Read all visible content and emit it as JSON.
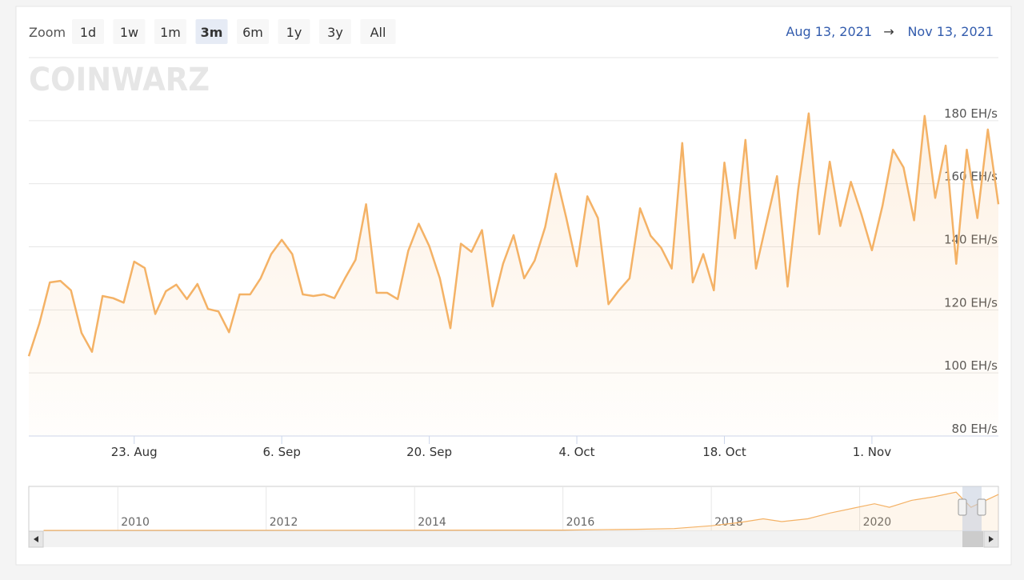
{
  "zoom_label": "Zoom",
  "zoom_buttons": [
    "1d",
    "1w",
    "1m",
    "3m",
    "6m",
    "1y",
    "3y",
    "All"
  ],
  "selected_zoom": 3,
  "range": {
    "from": "Aug 13, 2021",
    "arrow": "→",
    "to": "Nov 13, 2021"
  },
  "logo": "COINWARZ",
  "chart_data": {
    "type": "line",
    "color": "#f4b266",
    "x": [
      "2021-08-13",
      "2021-08-14",
      "2021-08-15",
      "2021-08-16",
      "2021-08-17",
      "2021-08-18",
      "2021-08-19",
      "2021-08-20",
      "2021-08-21",
      "2021-08-22",
      "2021-08-23",
      "2021-08-24",
      "2021-08-25",
      "2021-08-26",
      "2021-08-27",
      "2021-08-28",
      "2021-08-29",
      "2021-08-30",
      "2021-08-31",
      "2021-09-01",
      "2021-09-02",
      "2021-09-03",
      "2021-09-04",
      "2021-09-05",
      "2021-09-06",
      "2021-09-07",
      "2021-09-08",
      "2021-09-09",
      "2021-09-10",
      "2021-09-11",
      "2021-09-12",
      "2021-09-13",
      "2021-09-14",
      "2021-09-15",
      "2021-09-16",
      "2021-09-17",
      "2021-09-18",
      "2021-09-19",
      "2021-09-20",
      "2021-09-21",
      "2021-09-22",
      "2021-09-23",
      "2021-09-24",
      "2021-09-25",
      "2021-09-26",
      "2021-09-27",
      "2021-09-28",
      "2021-09-29",
      "2021-09-30",
      "2021-10-01",
      "2021-10-02",
      "2021-10-03",
      "2021-10-04",
      "2021-10-05",
      "2021-10-06",
      "2021-10-07",
      "2021-10-08",
      "2021-10-09",
      "2021-10-10",
      "2021-10-11",
      "2021-10-12",
      "2021-10-13",
      "2021-10-14",
      "2021-10-15",
      "2021-10-16",
      "2021-10-17",
      "2021-10-18",
      "2021-10-19",
      "2021-10-20",
      "2021-10-21",
      "2021-10-22",
      "2021-10-23",
      "2021-10-24",
      "2021-10-25",
      "2021-10-26",
      "2021-10-27",
      "2021-10-28",
      "2021-10-29",
      "2021-10-30",
      "2021-10-31",
      "2021-11-01",
      "2021-11-02",
      "2021-11-03",
      "2021-11-04",
      "2021-11-05",
      "2021-11-06",
      "2021-11-07",
      "2021-11-08",
      "2021-11-09",
      "2021-11-10",
      "2021-11-11",
      "2021-11-12",
      "2021-11-13"
    ],
    "values": [
      105.3,
      115.7,
      128.7,
      129.2,
      126.2,
      112.7,
      106.7,
      124.4,
      123.7,
      122.3,
      135.3,
      133.3,
      118.7,
      125.9,
      128.0,
      123.4,
      128.2,
      120.3,
      119.5,
      112.9,
      124.9,
      124.9,
      130.0,
      137.7,
      142.2,
      137.7,
      124.9,
      124.4,
      124.9,
      123.7,
      130.0,
      135.9,
      153.5,
      125.4,
      125.4,
      123.4,
      138.7,
      147.3,
      140.2,
      130.0,
      114.2,
      141.0,
      138.4,
      145.3,
      121.1,
      134.6,
      143.7,
      130.0,
      135.6,
      146.3,
      163.2,
      149.1,
      133.8,
      156.0,
      149.1,
      121.8,
      126.2,
      130.0,
      152.2,
      143.5,
      139.7,
      133.1,
      172.9,
      128.7,
      137.7,
      126.2,
      166.7,
      142.7,
      173.9,
      133.1,
      147.9,
      162.4,
      127.4,
      158.1,
      182.3,
      144.0,
      167.0,
      146.6,
      160.6,
      150.4,
      138.9,
      153.0,
      170.8,
      165.2,
      148.4,
      181.5,
      155.5,
      172.1,
      134.6,
      170.8,
      149.1,
      177.2,
      153.5
    ],
    "xlim": [
      "2021-08-13",
      "2021-11-13"
    ],
    "xticks": [
      {
        "value": "2021-08-23",
        "label": "23. Aug"
      },
      {
        "value": "2021-09-06",
        "label": "6. Sep"
      },
      {
        "value": "2021-09-20",
        "label": "20. Sep"
      },
      {
        "value": "2021-10-04",
        "label": "4. Oct"
      },
      {
        "value": "2021-10-18",
        "label": "18. Oct"
      },
      {
        "value": "2021-11-01",
        "label": "1. Nov"
      }
    ],
    "ylim": [
      80,
      200
    ],
    "yticks": [
      {
        "value": 80,
        "label": "80 EH/s"
      },
      {
        "value": 100,
        "label": "100 EH/s"
      },
      {
        "value": 120,
        "label": "120 EH/s"
      },
      {
        "value": 140,
        "label": "140 EH/s"
      },
      {
        "value": 160,
        "label": "160 EH/s"
      },
      {
        "value": 180,
        "label": "180 EH/s"
      }
    ],
    "grid": true,
    "navigator": {
      "x": [
        2009,
        2016,
        2017,
        2017.5,
        2018,
        2018.4,
        2018.7,
        2018.95,
        2019.3,
        2019.6,
        2019.9,
        2020.2,
        2020.4,
        2020.7,
        2021.0,
        2021.3,
        2021.5,
        2021.87
      ],
      "values": [
        0,
        1.5,
        5,
        8,
        20,
        35,
        50,
        38,
        50,
        75,
        95,
        115,
        100,
        130,
        145,
        165,
        100,
        155
      ],
      "xlim": [
        2008.8,
        2021.87
      ],
      "ylim": [
        0,
        190
      ],
      "xticks": [
        2010,
        2012,
        2014,
        2016,
        2018,
        2020
      ]
    }
  }
}
